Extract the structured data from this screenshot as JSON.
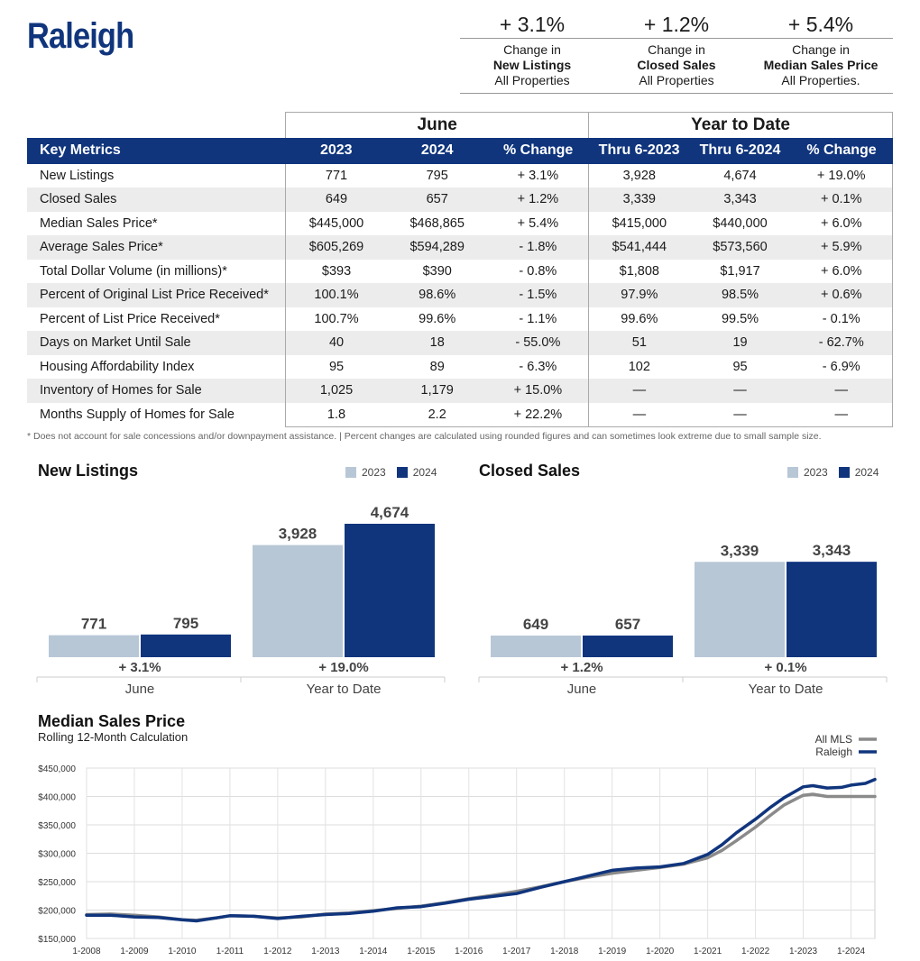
{
  "title": "Raleigh",
  "summary": [
    {
      "pct": "+ 3.1%",
      "line1": "Change in",
      "line2": "New Listings",
      "line3": "All Properties"
    },
    {
      "pct": "+ 1.2%",
      "line1": "Change in",
      "line2": "Closed Sales",
      "line3": "All Properties"
    },
    {
      "pct": "+ 5.4%",
      "line1": "Change in",
      "line2": "Median Sales Price",
      "line3": "All Properties."
    }
  ],
  "table": {
    "group_june": "June",
    "group_ytd": "Year to Date",
    "headers": [
      "Key Metrics",
      "2023",
      "2024",
      "% Change",
      "Thru 6-2023",
      "Thru 6-2024",
      "% Change"
    ],
    "rows": [
      [
        "New Listings",
        "771",
        "795",
        "+ 3.1%",
        "3,928",
        "4,674",
        "+ 19.0%"
      ],
      [
        "Closed Sales",
        "649",
        "657",
        "+ 1.2%",
        "3,339",
        "3,343",
        "+ 0.1%"
      ],
      [
        "Median Sales Price*",
        "$445,000",
        "$468,865",
        "+ 5.4%",
        "$415,000",
        "$440,000",
        "+ 6.0%"
      ],
      [
        "Average Sales Price*",
        "$605,269",
        "$594,289",
        "- 1.8%",
        "$541,444",
        "$573,560",
        "+ 5.9%"
      ],
      [
        "Total Dollar Volume (in millions)*",
        "$393",
        "$390",
        "- 0.8%",
        "$1,808",
        "$1,917",
        "+ 6.0%"
      ],
      [
        "Percent of Original List Price Received*",
        "100.1%",
        "98.6%",
        "- 1.5%",
        "97.9%",
        "98.5%",
        "+ 0.6%"
      ],
      [
        "Percent of List Price Received*",
        "100.7%",
        "99.6%",
        "- 1.1%",
        "99.6%",
        "99.5%",
        "- 0.1%"
      ],
      [
        "Days on Market Until Sale",
        "40",
        "18",
        "- 55.0%",
        "51",
        "19",
        "- 62.7%"
      ],
      [
        "Housing Affordability Index",
        "95",
        "89",
        "- 6.3%",
        "102",
        "95",
        "- 6.9%"
      ],
      [
        "Inventory of Homes for Sale",
        "1,025",
        "1,179",
        "+ 15.0%",
        "—",
        "—",
        "—"
      ],
      [
        "Months Supply of Homes for Sale",
        "1.8",
        "2.2",
        "+ 22.2%",
        "—",
        "—",
        "—"
      ]
    ]
  },
  "footnote": "* Does not account for sale concessions and/or downpayment assistance. | Percent changes are calculated using rounded figures and can sometimes look extreme due to small sample size.",
  "colors": {
    "navy": "#10357d",
    "light": "#b8c7d6",
    "mls": "#8a8a8a"
  },
  "chart_data": [
    {
      "type": "bar",
      "title": "New Listings",
      "legend": [
        "2023",
        "2024"
      ],
      "categories": [
        "June",
        "Year to Date"
      ],
      "series": [
        {
          "name": "2023",
          "values": [
            771,
            3928
          ],
          "labels": [
            "771",
            "3,928"
          ]
        },
        {
          "name": "2024",
          "values": [
            795,
            4674
          ],
          "labels": [
            "795",
            "4,674"
          ]
        }
      ],
      "changes": [
        "+ 3.1%",
        "+ 19.0%"
      ]
    },
    {
      "type": "bar",
      "title": "Closed Sales",
      "legend": [
        "2023",
        "2024"
      ],
      "categories": [
        "June",
        "Year to Date"
      ],
      "series": [
        {
          "name": "2023",
          "values": [
            649,
            3339
          ],
          "labels": [
            "649",
            "3,339"
          ]
        },
        {
          "name": "2024",
          "values": [
            657,
            3343
          ],
          "labels": [
            "657",
            "3,343"
          ]
        }
      ],
      "changes": [
        "+ 1.2%",
        "+ 0.1%"
      ]
    },
    {
      "type": "line",
      "title": "Median Sales Price",
      "subtitle": "Rolling 12-Month Calculation",
      "ylim": [
        150000,
        450000
      ],
      "y_ticks": [
        150000,
        200000,
        250000,
        300000,
        350000,
        400000,
        450000
      ],
      "y_tick_labels": [
        "$150,000",
        "$200,000",
        "$250,000",
        "$300,000",
        "$350,000",
        "$400,000",
        "$450,000"
      ],
      "x_tick_labels": [
        "1-2008",
        "1-2009",
        "1-2010",
        "1-2011",
        "1-2012",
        "1-2013",
        "1-2014",
        "1-2015",
        "1-2016",
        "1-2017",
        "1-2018",
        "1-2019",
        "1-2020",
        "1-2021",
        "1-2022",
        "1-2023",
        "1-2024"
      ],
      "x_start": 2008.0,
      "x_end": 2024.5,
      "series": [
        {
          "name": "All MLS",
          "x": [
            2008.0,
            2008.5,
            2009.0,
            2009.5,
            2010.0,
            2010.3,
            2010.7,
            2011.0,
            2011.5,
            2012.0,
            2012.5,
            2013.0,
            2013.5,
            2014.0,
            2014.5,
            2015.0,
            2015.5,
            2016.0,
            2016.5,
            2017.0,
            2017.5,
            2018.0,
            2018.5,
            2019.0,
            2019.5,
            2020.0,
            2020.5,
            2021.0,
            2021.3,
            2021.6,
            2022.0,
            2022.3,
            2022.6,
            2022.9,
            2023.0,
            2023.2,
            2023.5,
            2024.0,
            2024.5
          ],
          "y": [
            192000,
            193000,
            191000,
            188000,
            183000,
            182000,
            186000,
            190000,
            189000,
            186000,
            188000,
            193000,
            195000,
            199000,
            203000,
            207000,
            213000,
            220000,
            226000,
            233000,
            241000,
            250000,
            258000,
            265000,
            270000,
            275000,
            281000,
            292000,
            305000,
            322000,
            346000,
            366000,
            385000,
            398000,
            402000,
            404000,
            400000,
            400000,
            400000
          ]
        },
        {
          "name": "Raleigh",
          "x": [
            2008.0,
            2008.5,
            2009.0,
            2009.5,
            2010.0,
            2010.3,
            2010.7,
            2011.0,
            2011.5,
            2012.0,
            2012.5,
            2013.0,
            2013.5,
            2014.0,
            2014.5,
            2015.0,
            2015.5,
            2016.0,
            2016.5,
            2017.0,
            2017.5,
            2018.0,
            2018.5,
            2019.0,
            2019.5,
            2020.0,
            2020.5,
            2021.0,
            2021.3,
            2021.6,
            2022.0,
            2022.3,
            2022.6,
            2022.9,
            2023.0,
            2023.2,
            2023.5,
            2023.8,
            2024.0,
            2024.3,
            2024.5
          ],
          "y": [
            191000,
            191000,
            188000,
            187000,
            183000,
            181000,
            186000,
            190000,
            189000,
            185000,
            189000,
            192000,
            194000,
            198000,
            204000,
            206000,
            212000,
            219000,
            224000,
            229000,
            240000,
            250000,
            260000,
            270000,
            274000,
            276000,
            282000,
            298000,
            315000,
            336000,
            360000,
            380000,
            398000,
            412000,
            417000,
            419000,
            415000,
            416000,
            420000,
            423000,
            430000
          ]
        }
      ],
      "legend": [
        "All MLS",
        "Raleigh"
      ]
    }
  ]
}
